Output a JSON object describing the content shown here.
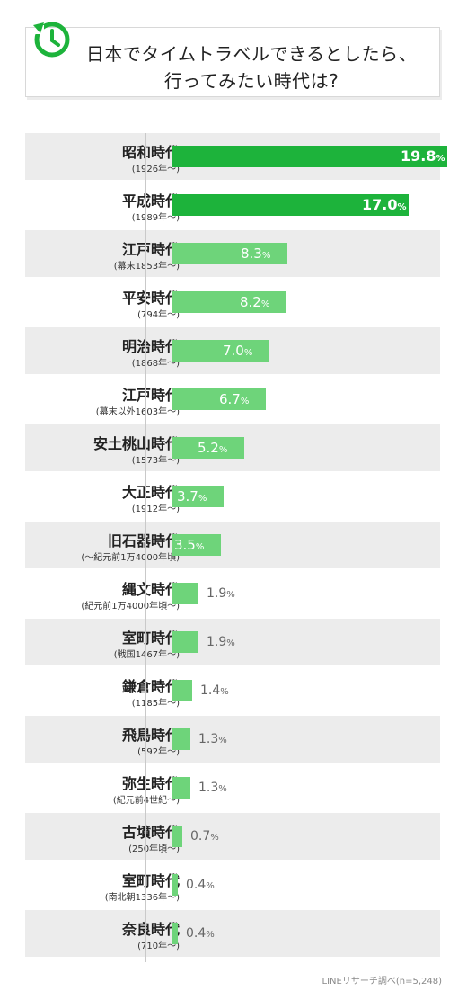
{
  "title": {
    "line1": "日本でタイムトラベルできるとしたら、",
    "line2": "行ってみたい時代は?"
  },
  "colors": {
    "top": "#1db33b",
    "other": "#6ed47a"
  },
  "source": "LINEリサーチ調べ(n=5,248)",
  "chart_data": {
    "type": "bar",
    "orientation": "horizontal",
    "unit": "%",
    "categories": [
      {
        "era": "昭和時代",
        "period": "(1926年〜)"
      },
      {
        "era": "平成時代",
        "period": "(1989年〜)"
      },
      {
        "era": "江戸時代",
        "period": "(幕末1853年〜)"
      },
      {
        "era": "平安時代",
        "period": "(794年〜)"
      },
      {
        "era": "明治時代",
        "period": "(1868年〜)"
      },
      {
        "era": "江戸時代",
        "period": "(幕末以外1603年〜)"
      },
      {
        "era": "安土桃山時代",
        "period": "(1573年〜)"
      },
      {
        "era": "大正時代",
        "period": "(1912年〜)"
      },
      {
        "era": "旧石器時代",
        "period": "(〜紀元前1万4000年頃)"
      },
      {
        "era": "縄文時代",
        "period": "(紀元前1万4000年頃〜)"
      },
      {
        "era": "室町時代",
        "period": "(戦国1467年〜)"
      },
      {
        "era": "鎌倉時代",
        "period": "(1185年〜)"
      },
      {
        "era": "飛鳥時代",
        "period": "(592年〜)"
      },
      {
        "era": "弥生時代",
        "period": "(紀元前4世紀〜)"
      },
      {
        "era": "古墳時代",
        "period": "(250年頃〜)"
      },
      {
        "era": "室町時代",
        "period": "(南北朝1336年〜)"
      },
      {
        "era": "奈良時代",
        "period": "(710年〜)"
      }
    ],
    "values": [
      19.8,
      17.0,
      8.3,
      8.2,
      7.0,
      6.7,
      5.2,
      3.7,
      3.5,
      1.9,
      1.9,
      1.4,
      1.3,
      1.3,
      0.7,
      0.4,
      0.4
    ],
    "labels": [
      "19.8",
      "17.0",
      "8.3",
      "8.2",
      "7.0",
      "6.7",
      "5.2",
      "3.7",
      "3.5",
      "1.9",
      "1.9",
      "1.4",
      "1.3",
      "1.3",
      "0.7",
      "0.4",
      "0.4"
    ]
  }
}
